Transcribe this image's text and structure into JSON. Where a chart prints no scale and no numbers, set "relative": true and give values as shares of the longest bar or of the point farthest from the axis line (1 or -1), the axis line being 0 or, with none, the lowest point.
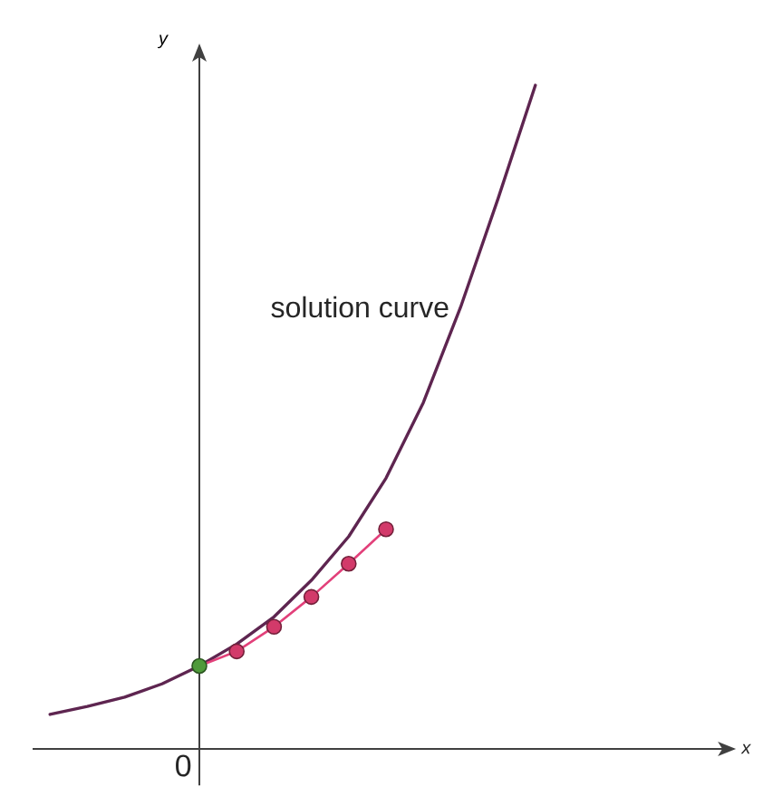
{
  "chart_data": {
    "type": "line",
    "relative": true,
    "ylabel": "y",
    "annotations": [
      "0",
      "x"
    ],
    "line_style": "solid",
    "categories": [
      null,
      null,
      null,
      null,
      null,
      null,
      null,
      null,
      null,
      null,
      null,
      null,
      null,
      null
    ],
    "series": [
      {
        "name": "solution curve",
        "color": "#5e2550",
        "marker": "none",
        "values": [
          0.052,
          0.064,
          0.078,
          0.098,
          0.125,
          0.158,
          0.199,
          0.254,
          0.32,
          0.408,
          0.522,
          0.666,
          0.829,
          1
        ]
      },
      {
        "color": "#e2407a",
        "colors": [
          null,
          null,
          null,
          null,
          "#4f9a3a",
          "#d23a6a",
          "#d23a6a",
          "#d23a6a",
          "#d23a6a",
          "#d23a6a",
          null,
          null,
          null,
          null
        ],
        "marker": "circle",
        "values": [
          null,
          null,
          null,
          null,
          0.125,
          0.147,
          0.184,
          0.229,
          0.279,
          0.331,
          null,
          null,
          null,
          null
        ]
      }
    ]
  }
}
